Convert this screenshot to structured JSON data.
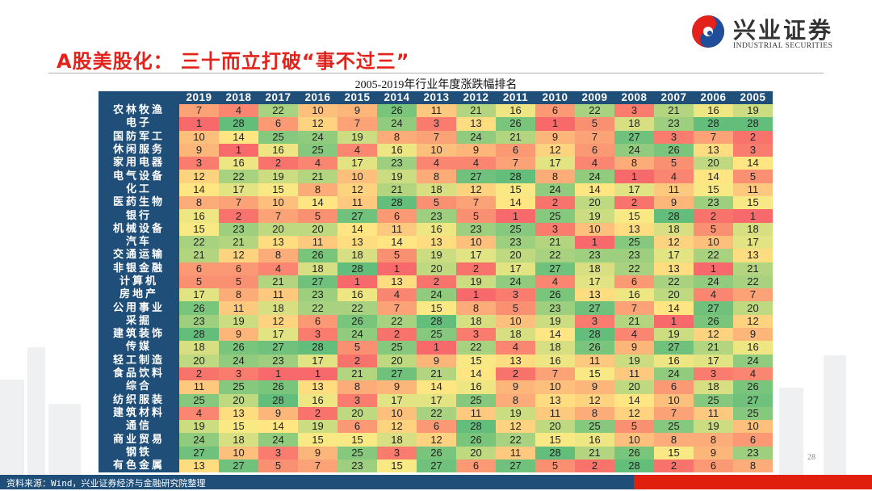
{
  "header": {
    "title": "A股美股化： 三十而立打破“事不过三”",
    "logo_cn": "兴业证券",
    "logo_en": "INDUSTRIAL SECURITIES"
  },
  "footer": {
    "source": "资料来源：Wind，兴业证券经济与金融研究院整理",
    "page_number": "28"
  },
  "colors": {
    "low": "#F8696B",
    "mid": "#FFEB84",
    "high": "#63BE7B",
    "header_bg": "#1F4E79",
    "title_red": "#E3231B"
  },
  "chart_data": {
    "type": "heatmap",
    "title": "2005-2019年行业年度涨跌幅排名",
    "columns": [
      "2019",
      "2018",
      "2017",
      "2016",
      "2015",
      "2014",
      "2013",
      "2012",
      "2011",
      "2010",
      "2009",
      "2008",
      "2007",
      "2006",
      "2005"
    ],
    "value_range": [
      1,
      28
    ],
    "rows": [
      {
        "name": "农林牧渔",
        "values": [
          7,
          4,
          22,
          10,
          9,
          26,
          11,
          21,
          16,
          6,
          22,
          3,
          21,
          16,
          19
        ]
      },
      {
        "name": "电子",
        "values": [
          1,
          28,
          6,
          12,
          7,
          24,
          3,
          13,
          26,
          1,
          5,
          18,
          23,
          28,
          28
        ]
      },
      {
        "name": "国防军工",
        "values": [
          10,
          14,
          25,
          24,
          19,
          8,
          7,
          24,
          21,
          9,
          7,
          27,
          3,
          7,
          2
        ]
      },
      {
        "name": "休闲服务",
        "values": [
          9,
          1,
          16,
          25,
          4,
          16,
          10,
          9,
          6,
          12,
          6,
          24,
          26,
          13,
          3
        ]
      },
      {
        "name": "家用电器",
        "values": [
          3,
          16,
          2,
          4,
          17,
          23,
          4,
          4,
          7,
          17,
          4,
          8,
          5,
          20,
          14
        ]
      },
      {
        "name": "电气设备",
        "values": [
          12,
          22,
          19,
          21,
          10,
          19,
          8,
          27,
          28,
          8,
          24,
          1,
          4,
          14,
          5
        ]
      },
      {
        "name": "化工",
        "values": [
          14,
          17,
          15,
          8,
          12,
          21,
          18,
          12,
          15,
          24,
          14,
          17,
          11,
          15,
          11
        ]
      },
      {
        "name": "医药生物",
        "values": [
          8,
          7,
          10,
          14,
          11,
          28,
          5,
          7,
          14,
          2,
          20,
          2,
          9,
          23,
          15
        ]
      },
      {
        "name": "银行",
        "values": [
          16,
          2,
          7,
          5,
          27,
          6,
          23,
          5,
          1,
          25,
          19,
          15,
          28,
          2,
          1
        ]
      },
      {
        "name": "机械设备",
        "values": [
          15,
          23,
          20,
          20,
          14,
          11,
          16,
          23,
          25,
          3,
          10,
          13,
          18,
          5,
          18
        ]
      },
      {
        "name": "汽车",
        "values": [
          22,
          21,
          13,
          11,
          13,
          14,
          13,
          10,
          23,
          21,
          1,
          25,
          12,
          10,
          17
        ]
      },
      {
        "name": "交通运输",
        "values": [
          21,
          12,
          8,
          26,
          18,
          5,
          19,
          17,
          20,
          22,
          23,
          23,
          17,
          22,
          13
        ]
      },
      {
        "name": "非银金融",
        "values": [
          6,
          6,
          4,
          18,
          28,
          1,
          20,
          2,
          17,
          27,
          18,
          22,
          13,
          1,
          21
        ]
      },
      {
        "name": "计算机",
        "values": [
          5,
          5,
          21,
          27,
          1,
          13,
          2,
          19,
          24,
          4,
          17,
          6,
          22,
          24,
          22
        ]
      },
      {
        "name": "房地产",
        "values": [
          17,
          8,
          11,
          23,
          16,
          4,
          24,
          1,
          3,
          26,
          13,
          16,
          20,
          4,
          7
        ]
      },
      {
        "name": "公用事业",
        "values": [
          26,
          11,
          18,
          22,
          22,
          7,
          15,
          8,
          5,
          23,
          27,
          7,
          14,
          27,
          20
        ]
      },
      {
        "name": "采掘",
        "values": [
          23,
          19,
          12,
          6,
          26,
          22,
          28,
          18,
          10,
          19,
          3,
          21,
          1,
          26,
          12
        ]
      },
      {
        "name": "建筑装饰",
        "values": [
          28,
          9,
          17,
          3,
          24,
          2,
          25,
          3,
          18,
          14,
          28,
          4,
          19,
          12,
          9
        ]
      },
      {
        "name": "传媒",
        "values": [
          18,
          26,
          27,
          28,
          5,
          25,
          1,
          22,
          4,
          18,
          26,
          9,
          27,
          21,
          16
        ]
      },
      {
        "name": "轻工制造",
        "values": [
          20,
          24,
          23,
          17,
          2,
          20,
          9,
          15,
          13,
          16,
          11,
          19,
          16,
          17,
          24
        ]
      },
      {
        "name": "食品饮料",
        "values": [
          2,
          3,
          1,
          1,
          21,
          27,
          21,
          14,
          2,
          7,
          15,
          11,
          24,
          3,
          4
        ]
      },
      {
        "name": "综合",
        "values": [
          11,
          25,
          26,
          13,
          8,
          9,
          14,
          16,
          9,
          10,
          9,
          20,
          6,
          18,
          26
        ]
      },
      {
        "name": "纺织服装",
        "values": [
          25,
          20,
          28,
          16,
          3,
          17,
          17,
          25,
          8,
          13,
          12,
          14,
          10,
          25,
          27
        ]
      },
      {
        "name": "建筑材料",
        "values": [
          4,
          13,
          9,
          2,
          20,
          10,
          22,
          11,
          19,
          11,
          8,
          12,
          7,
          11,
          25
        ]
      },
      {
        "name": "通信",
        "values": [
          19,
          15,
          14,
          19,
          6,
          12,
          6,
          28,
          12,
          20,
          25,
          5,
          25,
          19,
          10
        ]
      },
      {
        "name": "商业贸易",
        "values": [
          24,
          18,
          24,
          15,
          15,
          18,
          12,
          26,
          22,
          15,
          16,
          10,
          8,
          8,
          6
        ]
      },
      {
        "name": "钢铁",
        "values": [
          27,
          10,
          3,
          9,
          25,
          3,
          26,
          20,
          11,
          28,
          21,
          26,
          15,
          9,
          23
        ]
      },
      {
        "name": "有色金属",
        "values": [
          13,
          27,
          5,
          7,
          23,
          15,
          27,
          6,
          27,
          5,
          2,
          28,
          2,
          6,
          8
        ]
      }
    ]
  }
}
